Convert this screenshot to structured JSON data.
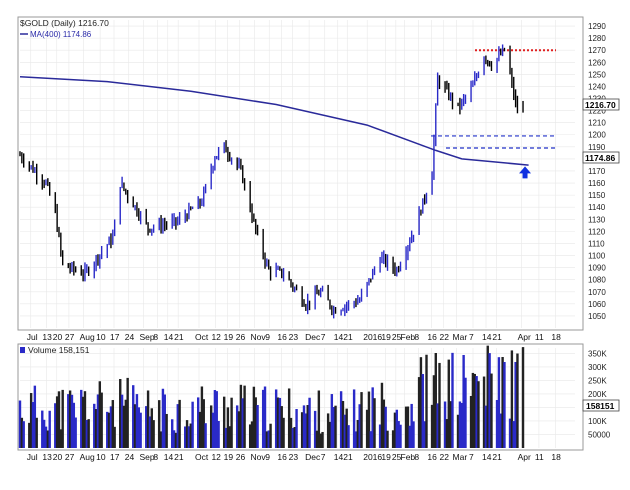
{
  "chart_data": [
    {
      "type": "line",
      "title": "$GOLD (Daily) 1216.70",
      "ma_label": "MA(400) 1174.86",
      "ylim": [
        1040,
        1295
      ],
      "y_ticks": [
        1290,
        1280,
        1270,
        1260,
        1250,
        1240,
        1230,
        1220,
        1210,
        1200,
        1190,
        1180,
        1170,
        1160,
        1150,
        1140,
        1130,
        1120,
        1110,
        1100,
        1090,
        1080,
        1070,
        1060,
        1050
      ],
      "x_tick_labels": [
        "Jul",
        "13",
        "20",
        "27",
        "Aug",
        "10",
        "17",
        "24",
        "Sep",
        "8",
        "14",
        "21",
        "Oct",
        "12",
        "19",
        "26",
        "Nov",
        "9",
        "16",
        "23",
        "Dec",
        "7",
        "14",
        "21",
        "2016",
        "19",
        "25",
        "Feb",
        "8",
        "16",
        "22",
        "Mar",
        "7",
        "14",
        "21",
        "Apr",
        "11",
        "18"
      ],
      "last_price_badge": "1216.70",
      "ma_badge": "1174.86",
      "series": [
        {
          "name": "$GOLD",
          "x": [
            "2015-07-01",
            "2015-07-15",
            "2015-07-20",
            "2015-07-24",
            "2015-08-05",
            "2015-08-20",
            "2015-08-24",
            "2015-09-08",
            "2015-09-24",
            "2015-10-07",
            "2015-10-14",
            "2015-10-19",
            "2015-10-28",
            "2015-11-06",
            "2015-11-12",
            "2015-11-20",
            "2015-12-02",
            "2015-12-10",
            "2015-12-17",
            "2015-12-31",
            "2016-01-11",
            "2016-01-20",
            "2016-01-29",
            "2016-02-04",
            "2016-02-08",
            "2016-02-11",
            "2016-02-22",
            "2016-03-01",
            "2016-03-07",
            "2016-03-11",
            "2016-03-18",
            "2016-03-21",
            "2016-03-24",
            "2016-03-28"
          ],
          "values": [
            1183,
            1160,
            1135,
            1092,
            1085,
            1115,
            1160,
            1123,
            1128,
            1145,
            1182,
            1190,
            1170,
            1115,
            1088,
            1085,
            1060,
            1070,
            1055,
            1063,
            1098,
            1088,
            1120,
            1148,
            1170,
            1246,
            1222,
            1240,
            1266,
            1258,
            1270,
            1250,
            1225,
            1216.7
          ]
        },
        {
          "name": "MA(400)",
          "x": [
            "2015-07-01",
            "2015-08-17",
            "2015-10-01",
            "2015-11-16",
            "2016-01-04",
            "2016-02-10",
            "2016-02-24",
            "2016-03-31"
          ],
          "values": [
            1248,
            1244,
            1236,
            1225,
            1208,
            1187,
            1180,
            1174.86
          ]
        }
      ],
      "reference_lines": [
        {
          "value": 1270,
          "style": "dotted",
          "color": "#e02020"
        },
        {
          "value": 1199,
          "style": "dashed",
          "color": "#2030c8"
        },
        {
          "value": 1189,
          "style": "dashed",
          "color": "#2030c8"
        }
      ],
      "annotations": [
        {
          "type": "arrow-up",
          "color": "#1030e0",
          "x": "2016-03-28"
        }
      ],
      "colors": {
        "price": "#000000",
        "up_bar": "#2a2ac8",
        "ma": "#2a2a9a",
        "grid": "#e8e8e8"
      }
    },
    {
      "type": "bar",
      "title": "Volume 158,151",
      "ylim": [
        0,
        370000
      ],
      "y_ticks": [
        "350K",
        "300K",
        "250K",
        "200K",
        "150K",
        "100K",
        "50000"
      ],
      "volume_badge": "158151",
      "x_tick_labels": [
        "Jul",
        "13",
        "20",
        "27",
        "Aug",
        "10",
        "17",
        "24",
        "Sep",
        "8",
        "14",
        "21",
        "Oct",
        "12",
        "19",
        "26",
        "Nov",
        "9",
        "16",
        "23",
        "Dec",
        "7",
        "14",
        "21",
        "2016",
        "19",
        "25",
        "Feb",
        "8",
        "16",
        "22",
        "Mar",
        "7",
        "14",
        "21",
        "Apr",
        "11",
        "18"
      ],
      "series": [
        {
          "name": "Volume",
          "x": [
            "2015-07",
            "2015-08",
            "2015-09",
            "2015-10",
            "2015-11",
            "2015-12",
            "2016-01",
            "2016-02",
            "2016-03"
          ],
          "values": [
            165000,
            180000,
            155000,
            170000,
            160000,
            150000,
            175000,
            250000,
            270000
          ]
        }
      ]
    }
  ]
}
